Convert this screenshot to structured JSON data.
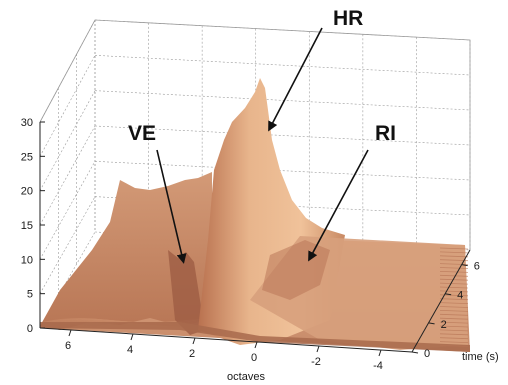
{
  "chart_data": {
    "type": "surface3d",
    "title": "",
    "xlabel": "octaves",
    "ylabel": "time (s)",
    "zlabel": "",
    "x_ticks": [
      "6",
      "4",
      "2",
      "0",
      "-2",
      "-4"
    ],
    "y_ticks": [
      "0",
      "2",
      "4",
      "6"
    ],
    "z_ticks": [
      "0",
      "5",
      "10",
      "15",
      "20",
      "25",
      "30"
    ],
    "xlim": [
      -5,
      7
    ],
    "ylim": [
      0,
      7
    ],
    "zlim": [
      0,
      30
    ],
    "grid": true,
    "annotations": [
      {
        "label": "HR",
        "x": 1.2,
        "y": 0.9,
        "z": 21
      },
      {
        "label": "VE",
        "x": 2.6,
        "y": 1.0,
        "z": 8
      },
      {
        "label": "RI",
        "x": -1.5,
        "y": 3.0,
        "z": 6
      }
    ],
    "profile_octaves": [
      7,
      6,
      5,
      4,
      3,
      2,
      1.5,
      1,
      0.5,
      0,
      -1,
      -2,
      -3,
      -4,
      -5
    ],
    "profile_height": [
      2,
      4,
      5,
      6,
      7,
      8,
      10,
      17,
      22,
      15,
      5,
      4,
      3,
      2,
      1
    ],
    "colors": {
      "surface_light": "#e7b48a",
      "surface_mid": "#d4956d",
      "surface_dark": "#a8664a",
      "grid": "#9a9a9a"
    }
  }
}
